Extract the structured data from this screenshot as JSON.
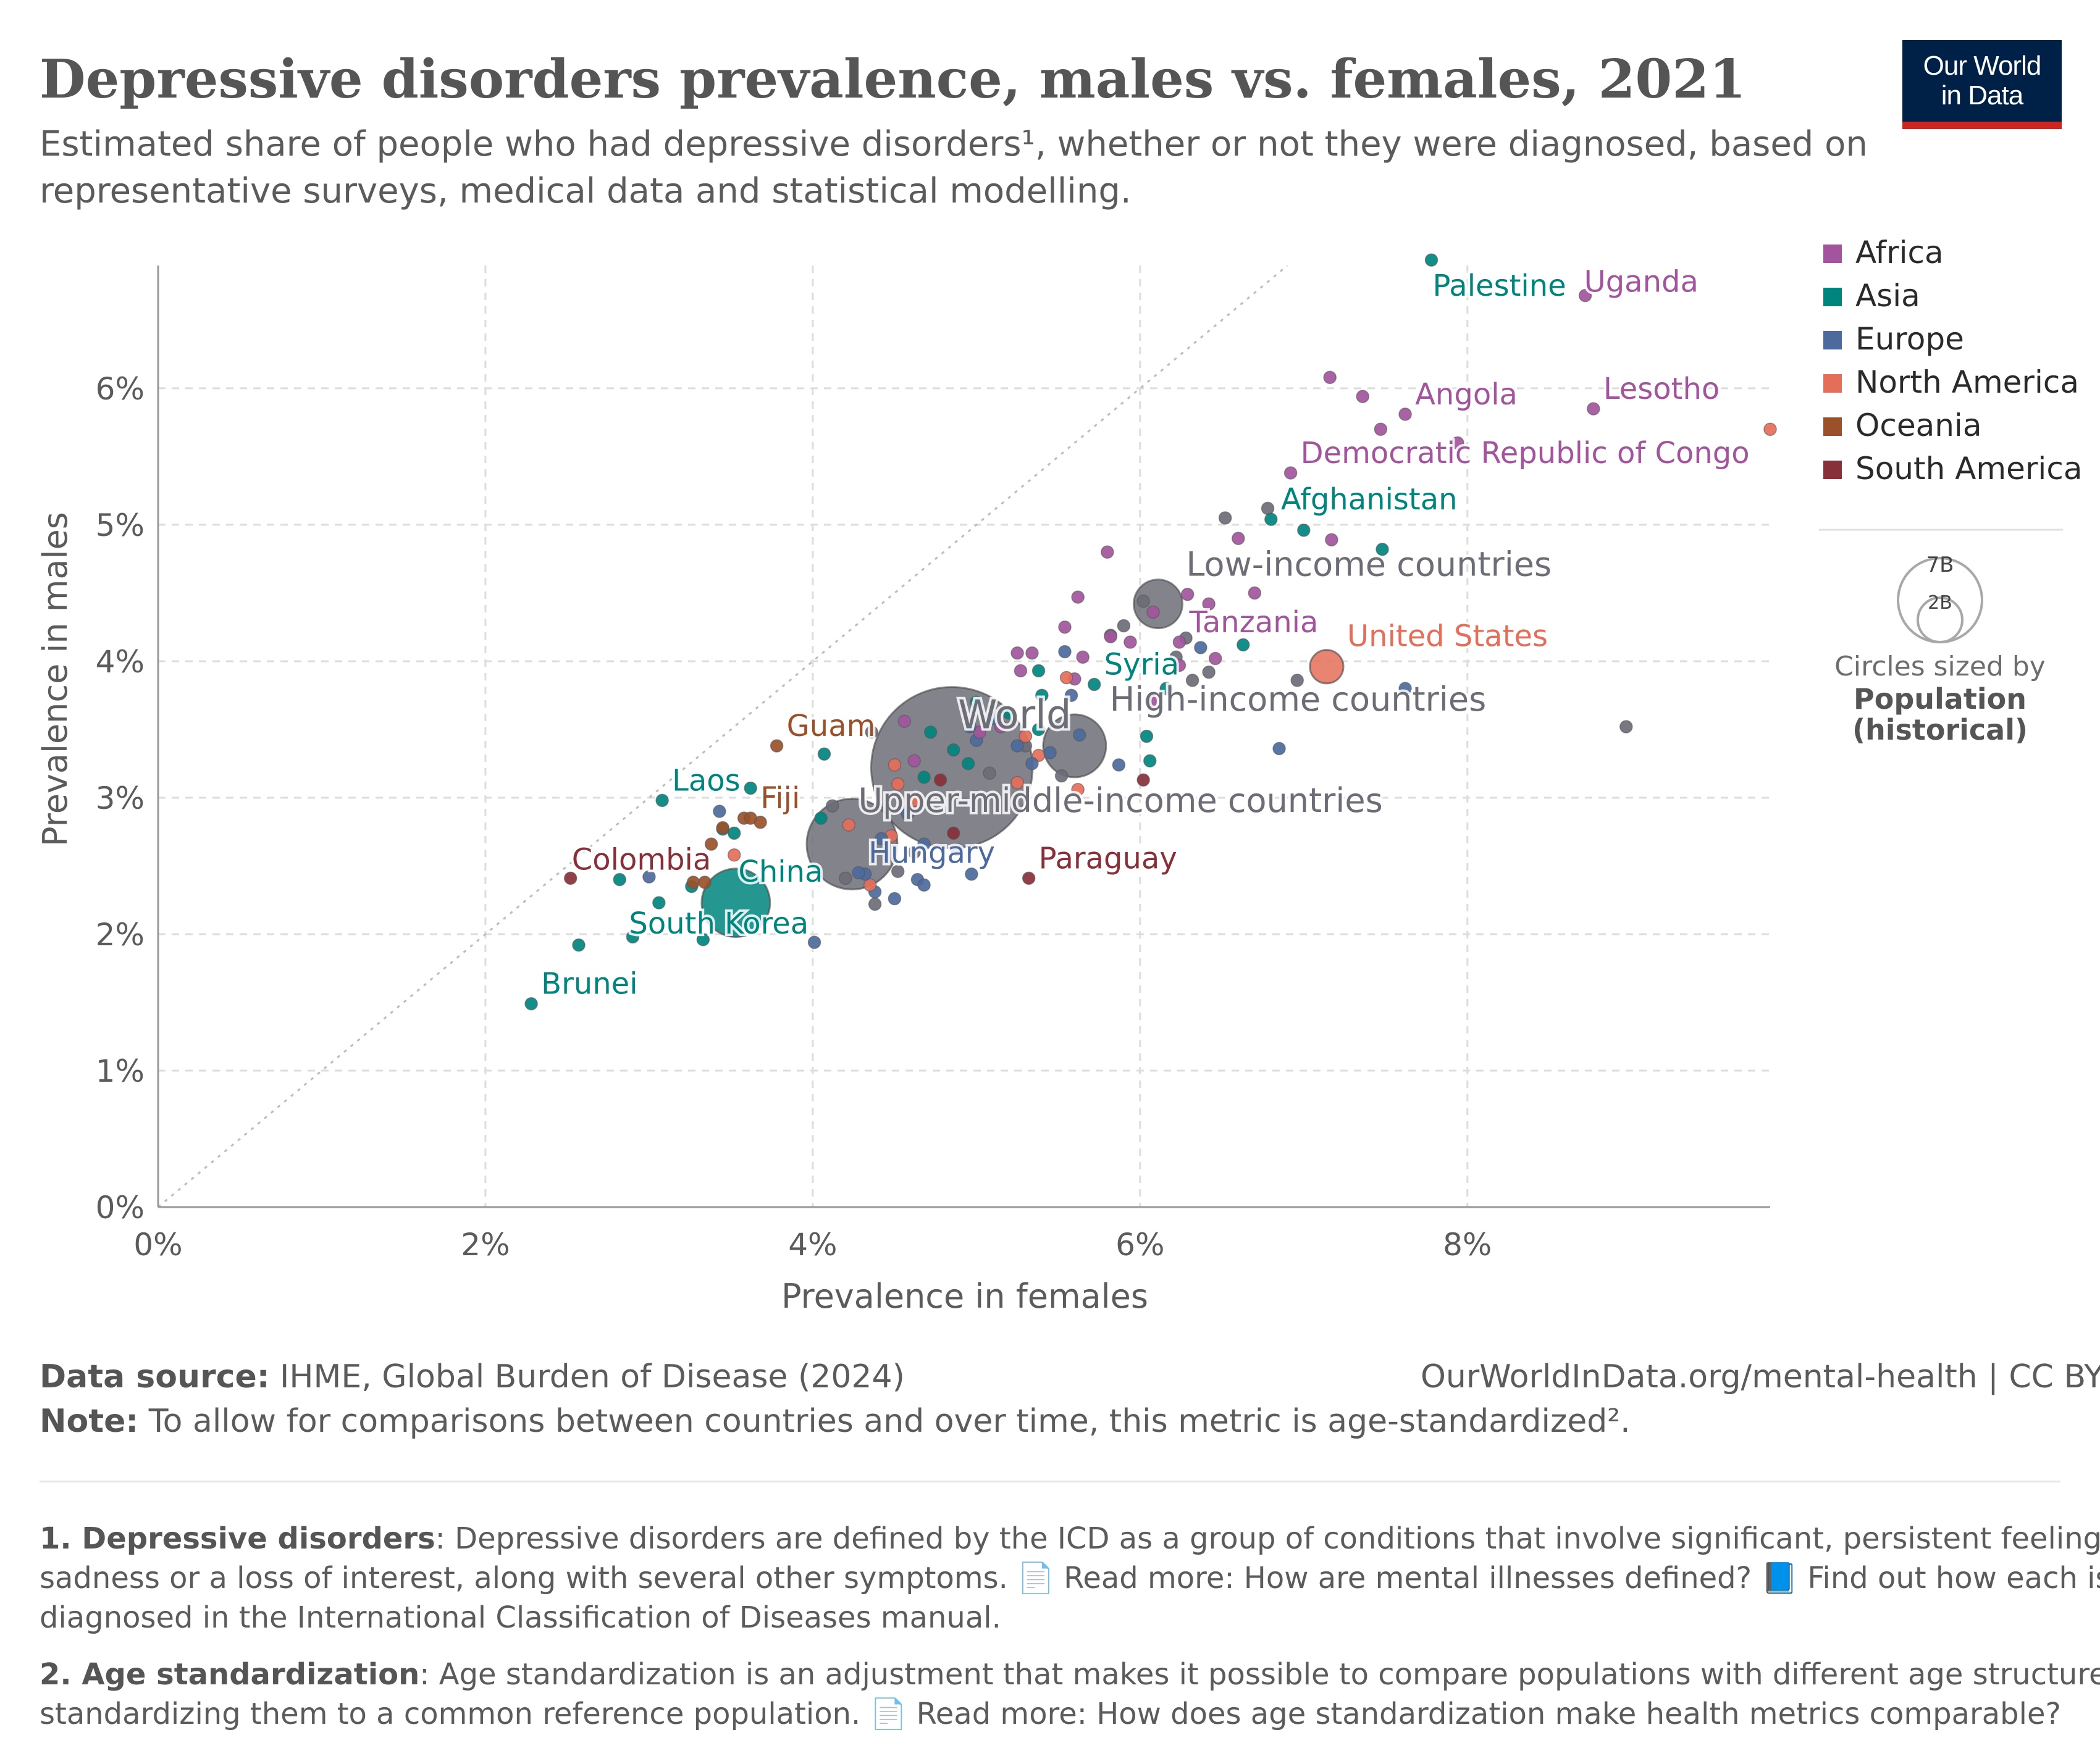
{
  "header": {
    "title": "Depressive disorders prevalence, males vs. females, 2021",
    "subtitle": "Estimated share of people who had depressive disorders¹, whether or not they were diagnosed, based on representative surveys, medical data and statistical modelling.",
    "logo_line1": "Our World",
    "logo_line2": "in Data"
  },
  "colors": {
    "Africa": "#a2559c",
    "Asia": "#00847e",
    "Europe": "#4c6a9c",
    "North America": "#e56e5a",
    "Oceania": "#9a5129",
    "South America": "#883039",
    "aggregate": "#6d6d78"
  },
  "legend": {
    "size_title_line1": "Circles sized by",
    "size_title_line2": "Population",
    "size_title_line3": "(historical)",
    "size_big": "7B",
    "size_small": "2B"
  },
  "chart_data": {
    "type": "scatter",
    "xlabel": "Prevalence in females",
    "ylabel": "Prevalence in males",
    "xlim": [
      0,
      9.85
    ],
    "ylim": [
      0,
      6.9
    ],
    "xticks": [
      0,
      2,
      4,
      6,
      8
    ],
    "yticks": [
      0,
      1,
      2,
      3,
      4,
      5,
      6
    ],
    "xtick_labels": [
      "0%",
      "2%",
      "4%",
      "6%",
      "8%"
    ],
    "ytick_labels": [
      "0%",
      "1%",
      "2%",
      "3%",
      "4%",
      "5%",
      "6%"
    ],
    "grid": true,
    "diagonal_reference_line": true,
    "legend_position": "right",
    "series_names": [
      "Africa",
      "Asia",
      "Europe",
      "North America",
      "Oceania",
      "South America"
    ],
    "labeled_points": [
      {
        "name": "Palestine",
        "group": "Asia",
        "x": 7.78,
        "y": 6.94
      },
      {
        "name": "Uganda",
        "group": "Africa",
        "x": 8.72,
        "y": 6.68
      },
      {
        "name": "Angola",
        "group": "Africa",
        "x": 7.62,
        "y": 5.81
      },
      {
        "name": "Lesotho",
        "group": "Africa",
        "x": 8.77,
        "y": 5.85
      },
      {
        "name": "Democratic Republic of Congo",
        "group": "Africa",
        "x": 6.92,
        "y": 5.38
      },
      {
        "name": "Afghanistan",
        "group": "Asia",
        "x": 6.8,
        "y": 5.04
      },
      {
        "name": "Low-income countries",
        "group": "aggregate",
        "x": 6.11,
        "y": 4.42,
        "pop": 0.72
      },
      {
        "name": "Tanzania",
        "group": "Africa",
        "x": 6.24,
        "y": 4.14
      },
      {
        "name": "United States",
        "group": "North America",
        "x": 7.14,
        "y": 3.96,
        "pop": 0.34
      },
      {
        "name": "Syria",
        "group": "Asia",
        "x": 5.72,
        "y": 3.83
      },
      {
        "name": "World",
        "group": "aggregate",
        "x": 4.85,
        "y": 3.22,
        "pop": 7.9
      },
      {
        "name": "High-income countries",
        "group": "aggregate",
        "x": 5.6,
        "y": 3.38,
        "pop": 1.2
      },
      {
        "name": "Guam",
        "group": "Oceania",
        "x": 3.78,
        "y": 3.38
      },
      {
        "name": "Laos",
        "group": "Asia",
        "x": 3.08,
        "y": 2.98
      },
      {
        "name": "Fiji",
        "group": "Oceania",
        "x": 3.62,
        "y": 2.85
      },
      {
        "name": "Upper-middle-income countries",
        "group": "aggregate",
        "x": 4.24,
        "y": 2.66,
        "pop": 2.5
      },
      {
        "name": "Hungary",
        "group": "Europe",
        "x": 4.28,
        "y": 2.45
      },
      {
        "name": "Colombia",
        "group": "South America",
        "x": 2.52,
        "y": 2.41
      },
      {
        "name": "China",
        "group": "Asia",
        "x": 3.53,
        "y": 2.23,
        "pop": 1.42
      },
      {
        "name": "Paraguay",
        "group": "South America",
        "x": 5.32,
        "y": 2.41
      },
      {
        "name": "South Korea",
        "group": "Asia",
        "x": 3.33,
        "y": 1.96
      },
      {
        "name": "Brunei",
        "group": "Asia",
        "x": 2.28,
        "y": 1.49
      }
    ],
    "other_points": [
      {
        "group": "Africa",
        "x": 7.16,
        "y": 6.08
      },
      {
        "group": "Africa",
        "x": 7.36,
        "y": 5.94
      },
      {
        "group": "Africa",
        "x": 7.47,
        "y": 5.7
      },
      {
        "group": "Africa",
        "x": 7.94,
        "y": 5.6
      },
      {
        "group": "Africa",
        "x": 6.6,
        "y": 4.9
      },
      {
        "group": "Africa",
        "x": 7.17,
        "y": 4.89
      },
      {
        "group": "Africa",
        "x": 5.8,
        "y": 4.8
      },
      {
        "group": "Africa",
        "x": 6.29,
        "y": 4.49
      },
      {
        "group": "Africa",
        "x": 5.62,
        "y": 4.47
      },
      {
        "group": "Africa",
        "x": 6.42,
        "y": 4.42
      },
      {
        "group": "Africa",
        "x": 6.7,
        "y": 4.5
      },
      {
        "group": "Africa",
        "x": 6.08,
        "y": 4.36
      },
      {
        "group": "Africa",
        "x": 5.54,
        "y": 4.25
      },
      {
        "group": "Africa",
        "x": 5.94,
        "y": 4.14
      },
      {
        "group": "Africa",
        "x": 5.25,
        "y": 4.06
      },
      {
        "group": "Africa",
        "x": 5.34,
        "y": 4.06
      },
      {
        "group": "Africa",
        "x": 5.65,
        "y": 4.03
      },
      {
        "group": "Africa",
        "x": 5.27,
        "y": 3.93
      },
      {
        "group": "Africa",
        "x": 5.6,
        "y": 3.87
      },
      {
        "group": "Africa",
        "x": 6.07,
        "y": 3.71
      },
      {
        "group": "Africa",
        "x": 4.56,
        "y": 3.56
      },
      {
        "group": "Africa",
        "x": 4.62,
        "y": 3.27
      },
      {
        "group": "Africa",
        "x": 6.24,
        "y": 3.97
      },
      {
        "group": "Africa",
        "x": 6.46,
        "y": 4.02
      },
      {
        "group": "Asia",
        "x": 7.0,
        "y": 4.96
      },
      {
        "group": "Asia",
        "x": 7.48,
        "y": 4.82
      },
      {
        "group": "Asia",
        "x": 6.63,
        "y": 4.12
      },
      {
        "group": "Asia",
        "x": 5.0,
        "y": 3.7
      },
      {
        "group": "Asia",
        "x": 5.38,
        "y": 3.93
      },
      {
        "group": "Asia",
        "x": 6.16,
        "y": 3.8
      },
      {
        "group": "Asia",
        "x": 5.38,
        "y": 3.5
      },
      {
        "group": "Asia",
        "x": 6.04,
        "y": 3.45
      },
      {
        "group": "Asia",
        "x": 6.06,
        "y": 3.27
      },
      {
        "group": "Asia",
        "x": 4.95,
        "y": 3.25
      },
      {
        "group": "Asia",
        "x": 4.07,
        "y": 3.32
      },
      {
        "group": "Asia",
        "x": 3.62,
        "y": 3.07
      },
      {
        "group": "Asia",
        "x": 4.05,
        "y": 2.85
      },
      {
        "group": "Asia",
        "x": 3.52,
        "y": 2.74
      },
      {
        "group": "Asia",
        "x": 3.45,
        "y": 2.77
      },
      {
        "group": "Asia",
        "x": 3.26,
        "y": 2.35
      },
      {
        "group": "Asia",
        "x": 2.82,
        "y": 2.4
      },
      {
        "group": "Asia",
        "x": 3.06,
        "y": 2.23
      },
      {
        "group": "Asia",
        "x": 2.9,
        "y": 1.98
      },
      {
        "group": "Asia",
        "x": 2.57,
        "y": 1.92
      },
      {
        "group": "Asia",
        "x": 4.68,
        "y": 3.15
      },
      {
        "group": "Europe",
        "x": 7.62,
        "y": 3.8
      },
      {
        "group": "Europe",
        "x": 6.85,
        "y": 3.36
      },
      {
        "group": "Europe",
        "x": 6.37,
        "y": 4.1
      },
      {
        "group": "Europe",
        "x": 5.58,
        "y": 3.75
      },
      {
        "group": "Europe",
        "x": 5.63,
        "y": 3.46
      },
      {
        "group": "Europe",
        "x": 5.87,
        "y": 3.24
      },
      {
        "group": "Europe",
        "x": 5.25,
        "y": 3.38
      },
      {
        "group": "Europe",
        "x": 4.68,
        "y": 2.66
      },
      {
        "group": "Europe",
        "x": 4.88,
        "y": 2.62
      },
      {
        "group": "Europe",
        "x": 4.64,
        "y": 2.4
      },
      {
        "group": "Europe",
        "x": 4.68,
        "y": 2.36
      },
      {
        "group": "Europe",
        "x": 4.38,
        "y": 2.31
      },
      {
        "group": "Europe",
        "x": 4.5,
        "y": 2.26
      },
      {
        "group": "Europe",
        "x": 4.01,
        "y": 1.94
      },
      {
        "group": "Europe",
        "x": 3.0,
        "y": 2.42
      },
      {
        "group": "Europe",
        "x": 3.43,
        "y": 2.9
      },
      {
        "group": "Europe",
        "x": 4.97,
        "y": 2.44
      },
      {
        "group": "Europe",
        "x": 5.54,
        "y": 4.07
      },
      {
        "group": "North America",
        "x": 9.85,
        "y": 5.7
      },
      {
        "group": "North America",
        "x": 5.3,
        "y": 3.45
      },
      {
        "group": "North America",
        "x": 5.38,
        "y": 3.31
      },
      {
        "group": "North America",
        "x": 4.5,
        "y": 3.24
      },
      {
        "group": "North America",
        "x": 4.52,
        "y": 3.1
      },
      {
        "group": "North America",
        "x": 5.25,
        "y": 3.11
      },
      {
        "group": "North America",
        "x": 4.22,
        "y": 2.8
      },
      {
        "group": "North America",
        "x": 4.48,
        "y": 2.72
      },
      {
        "group": "North America",
        "x": 4.35,
        "y": 2.36
      },
      {
        "group": "North America",
        "x": 3.52,
        "y": 2.58
      },
      {
        "group": "North America",
        "x": 5.55,
        "y": 3.88
      },
      {
        "group": "North America",
        "x": 5.62,
        "y": 3.06
      },
      {
        "group": "Oceania",
        "x": 3.58,
        "y": 2.85
      },
      {
        "group": "Oceania",
        "x": 3.68,
        "y": 2.82
      },
      {
        "group": "Oceania",
        "x": 3.45,
        "y": 2.78
      },
      {
        "group": "Oceania",
        "x": 3.38,
        "y": 2.66
      },
      {
        "group": "Oceania",
        "x": 3.27,
        "y": 2.38
      },
      {
        "group": "Oceania",
        "x": 3.34,
        "y": 2.38
      },
      {
        "group": "South America",
        "x": 4.86,
        "y": 2.74
      },
      {
        "group": "South America",
        "x": 4.78,
        "y": 3.13
      },
      {
        "group": "South America",
        "x": 6.02,
        "y": 3.13
      },
      {
        "group": "Europe",
        "x": 5.45,
        "y": 3.33
      },
      {
        "group": "Europe",
        "x": 5.0,
        "y": 3.42
      },
      {
        "group": "Africa",
        "x": 5.15,
        "y": 3.52
      },
      {
        "group": "Asia",
        "x": 5.2,
        "y": 3.62
      },
      {
        "group": "Africa",
        "x": 5.02,
        "y": 3.48
      },
      {
        "group": "Asia",
        "x": 4.72,
        "y": 3.48
      },
      {
        "group": "Europe",
        "x": 4.58,
        "y": 2.88
      },
      {
        "group": "Europe",
        "x": 4.42,
        "y": 2.7
      },
      {
        "group": "Europe",
        "x": 4.32,
        "y": 2.44
      },
      {
        "group": "Asia",
        "x": 4.86,
        "y": 3.35
      },
      {
        "group": "Europe",
        "x": 4.96,
        "y": 3.52
      },
      {
        "group": "Africa",
        "x": 5.82,
        "y": 4.18
      },
      {
        "group": "Asia",
        "x": 5.4,
        "y": 3.75
      },
      {
        "group": "Europe",
        "x": 5.34,
        "y": 3.25
      },
      {
        "group": "North America",
        "x": 4.62,
        "y": 2.98
      },
      {
        "group": "Europe",
        "x": 5.1,
        "y": 3.58
      }
    ],
    "aggregate_points": [
      {
        "group": "aggregate",
        "x": 5.9,
        "y": 4.26
      },
      {
        "group": "aggregate",
        "x": 6.02,
        "y": 4.44
      },
      {
        "group": "aggregate",
        "x": 5.82,
        "y": 4.19
      },
      {
        "group": "aggregate",
        "x": 6.28,
        "y": 4.17
      },
      {
        "group": "aggregate",
        "x": 6.22,
        "y": 4.03
      },
      {
        "group": "aggregate",
        "x": 6.32,
        "y": 3.86
      },
      {
        "group": "aggregate",
        "x": 6.42,
        "y": 3.92
      },
      {
        "group": "aggregate",
        "x": 6.52,
        "y": 5.05
      },
      {
        "group": "aggregate",
        "x": 6.78,
        "y": 5.12
      },
      {
        "group": "aggregate",
        "x": 6.96,
        "y": 3.86
      },
      {
        "group": "aggregate",
        "x": 8.97,
        "y": 3.52
      },
      {
        "group": "aggregate",
        "x": 5.3,
        "y": 3.38
      },
      {
        "group": "aggregate",
        "x": 5.52,
        "y": 3.16
      },
      {
        "group": "aggregate",
        "x": 5.08,
        "y": 3.18
      },
      {
        "group": "aggregate",
        "x": 4.36,
        "y": 3.48
      },
      {
        "group": "aggregate",
        "x": 4.12,
        "y": 2.94
      },
      {
        "group": "aggregate",
        "x": 4.62,
        "y": 2.6
      },
      {
        "group": "aggregate",
        "x": 4.52,
        "y": 2.46
      },
      {
        "group": "aggregate",
        "x": 4.38,
        "y": 2.22
      },
      {
        "group": "aggregate",
        "x": 4.2,
        "y": 2.41
      }
    ]
  },
  "footer": {
    "source_label": "Data source:",
    "source_text": " IHME, Global Burden of Disease (2024)",
    "url_text": "OurWorldInData.org/mental-health | CC BY",
    "note_label": "Note:",
    "note_text": " To allow for comparisons between countries and over time, this metric is age-standardized².",
    "fn1_label": "1. Depressive disorders",
    "fn1_line1": ": Depressive disorders are defined by the ICD as a group of conditions that involve significant, persistent feelings of",
    "fn1_line2": "sadness or a loss of interest, along with several other symptoms. 📄 Read more: How are mental illnesses defined? 📘 Find out how each is",
    "fn1_line3": "diagnosed in the International Classification of Diseases manual.",
    "fn2_label": "2. Age standardization",
    "fn2_line1": ": Age standardization is an adjustment that makes it possible to compare populations with different age structures, by",
    "fn2_line2": "standardizing them to a common reference population. 📄 Read more: How does age standardization make health metrics comparable?"
  }
}
